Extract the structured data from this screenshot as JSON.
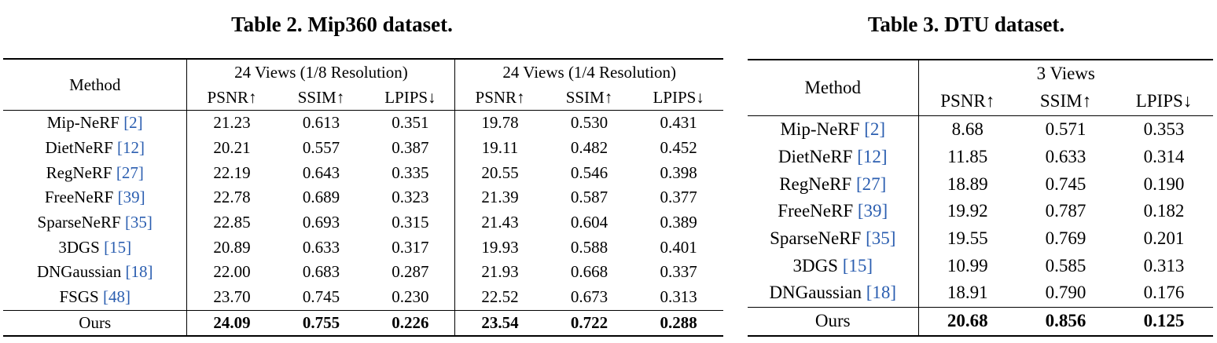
{
  "table2": {
    "caption": "Table 2. Mip360 dataset.",
    "method_header": "Method",
    "group_headers": [
      "24 Views (1/8 Resolution)",
      "24 Views (1/4 Resolution)"
    ],
    "metric_headers": [
      "PSNR↑",
      "SSIM↑",
      "LPIPS↓",
      "PSNR↑",
      "SSIM↑",
      "LPIPS↓"
    ],
    "rows": [
      {
        "method": "Mip-NeRF ",
        "cite": "[2]",
        "values": [
          "21.23",
          "0.613",
          "0.351",
          "19.78",
          "0.530",
          "0.431"
        ]
      },
      {
        "method": "DietNeRF ",
        "cite": "[12]",
        "values": [
          "20.21",
          "0.557",
          "0.387",
          "19.11",
          "0.482",
          "0.452"
        ]
      },
      {
        "method": "RegNeRF ",
        "cite": "[27]",
        "values": [
          "22.19",
          "0.643",
          "0.335",
          "20.55",
          "0.546",
          "0.398"
        ]
      },
      {
        "method": "FreeNeRF ",
        "cite": "[39]",
        "values": [
          "22.78",
          "0.689",
          "0.323",
          "21.39",
          "0.587",
          "0.377"
        ]
      },
      {
        "method": "SparseNeRF ",
        "cite": "[35]",
        "values": [
          "22.85",
          "0.693",
          "0.315",
          "21.43",
          "0.604",
          "0.389"
        ]
      },
      {
        "method": "3DGS ",
        "cite": "[15]",
        "values": [
          "20.89",
          "0.633",
          "0.317",
          "19.93",
          "0.588",
          "0.401"
        ]
      },
      {
        "method": "DNGaussian ",
        "cite": "[18]",
        "values": [
          "22.00",
          "0.683",
          "0.287",
          "21.93",
          "0.668",
          "0.337"
        ]
      },
      {
        "method": "FSGS ",
        "cite": "[48]",
        "values": [
          "23.70",
          "0.745",
          "0.230",
          "22.52",
          "0.673",
          "0.313"
        ]
      }
    ],
    "ours": {
      "method": "Ours",
      "values": [
        "24.09",
        "0.755",
        "0.226",
        "23.54",
        "0.722",
        "0.288"
      ]
    }
  },
  "table3": {
    "caption": "Table 3. DTU dataset.",
    "method_header": "Method",
    "group_header": "3 Views",
    "metric_headers": [
      "PSNR↑",
      "SSIM↑",
      "LPIPS↓"
    ],
    "rows": [
      {
        "method": "Mip-NeRF ",
        "cite": "[2]",
        "values": [
          "8.68",
          "0.571",
          "0.353"
        ]
      },
      {
        "method": "DietNeRF ",
        "cite": "[12]",
        "values": [
          "11.85",
          "0.633",
          "0.314"
        ]
      },
      {
        "method": "RegNeRF ",
        "cite": "[27]",
        "values": [
          "18.89",
          "0.745",
          "0.190"
        ]
      },
      {
        "method": "FreeNeRF ",
        "cite": "[39]",
        "values": [
          "19.92",
          "0.787",
          "0.182"
        ]
      },
      {
        "method": "SparseNeRF ",
        "cite": "[35]",
        "values": [
          "19.55",
          "0.769",
          "0.201"
        ]
      },
      {
        "method": "3DGS ",
        "cite": "[15]",
        "values": [
          "10.99",
          "0.585",
          "0.313"
        ]
      },
      {
        "method": "DNGaussian ",
        "cite": "[18]",
        "values": [
          "18.91",
          "0.790",
          "0.176"
        ]
      }
    ],
    "ours": {
      "method": "Ours",
      "values": [
        "20.68",
        "0.856",
        "0.125"
      ]
    }
  },
  "colors": {
    "citation": "#2b5eb0",
    "text": "#000000",
    "background": "#ffffff"
  }
}
